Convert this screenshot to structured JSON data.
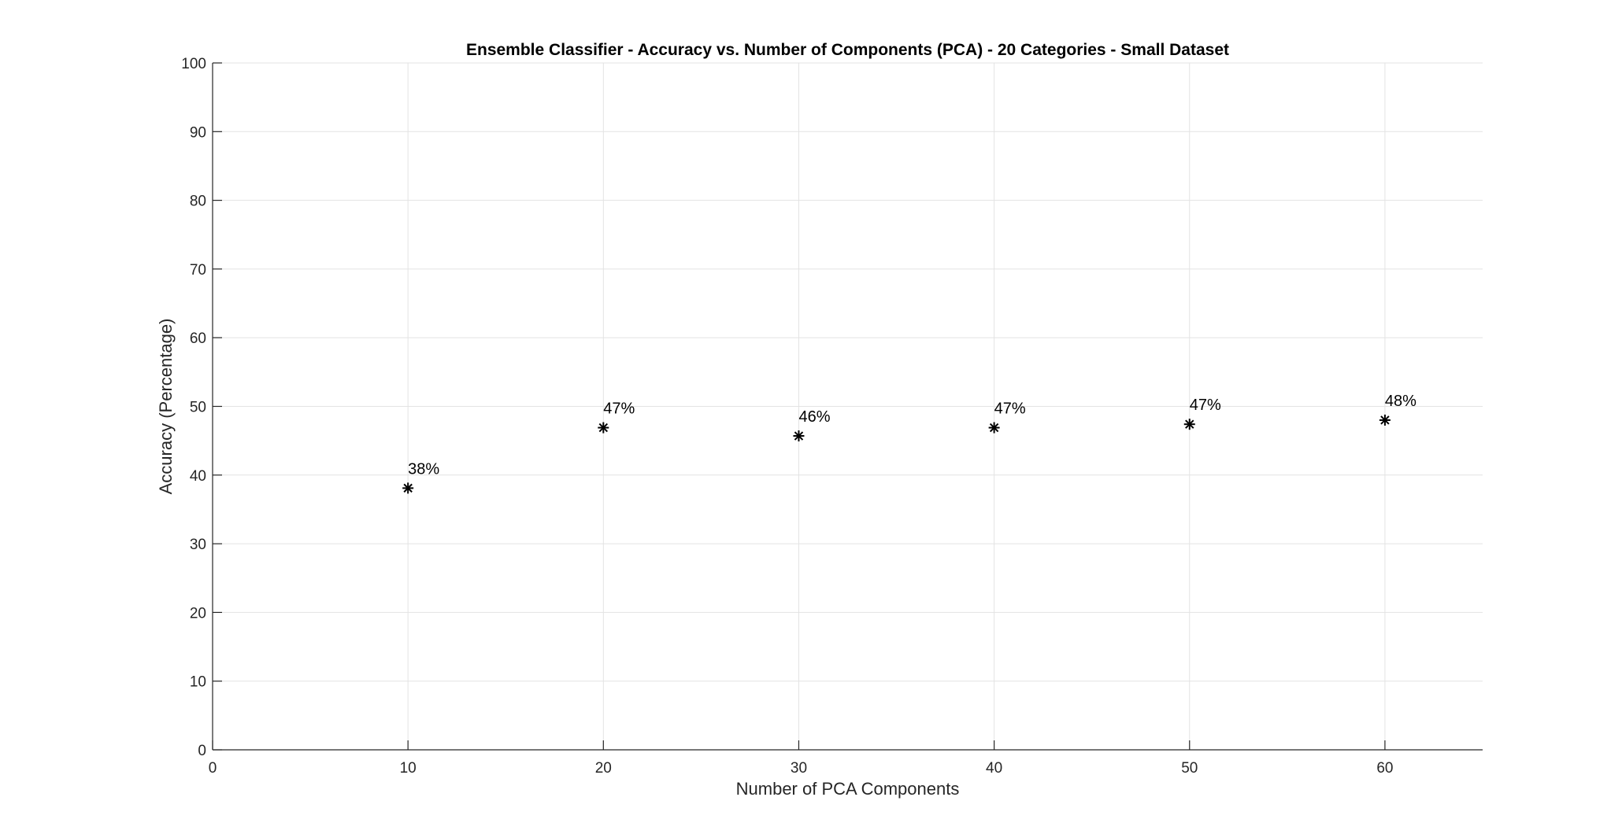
{
  "chart_data": {
    "type": "scatter",
    "title": "Ensemble Classifier - Accuracy vs. Number of Components (PCA) - 20 Categories - Small Dataset",
    "xlabel": "Number of PCA Components",
    "ylabel": "Accuracy (Percentage)",
    "xlim": [
      0,
      65
    ],
    "ylim": [
      0,
      100
    ],
    "xticks": [
      0,
      10,
      20,
      30,
      40,
      50,
      60
    ],
    "yticks": [
      0,
      10,
      20,
      30,
      40,
      50,
      60,
      70,
      80,
      90,
      100
    ],
    "grid": true,
    "marker": "asterisk",
    "marker_color": "#000000",
    "series": [
      {
        "x": [
          10,
          20,
          30,
          40,
          50,
          60
        ],
        "y": [
          38.1,
          46.9,
          45.7,
          46.9,
          47.4,
          48.0
        ],
        "labels": [
          "38%",
          "47%",
          "46%",
          "47%",
          "47%",
          "48%"
        ]
      }
    ]
  }
}
